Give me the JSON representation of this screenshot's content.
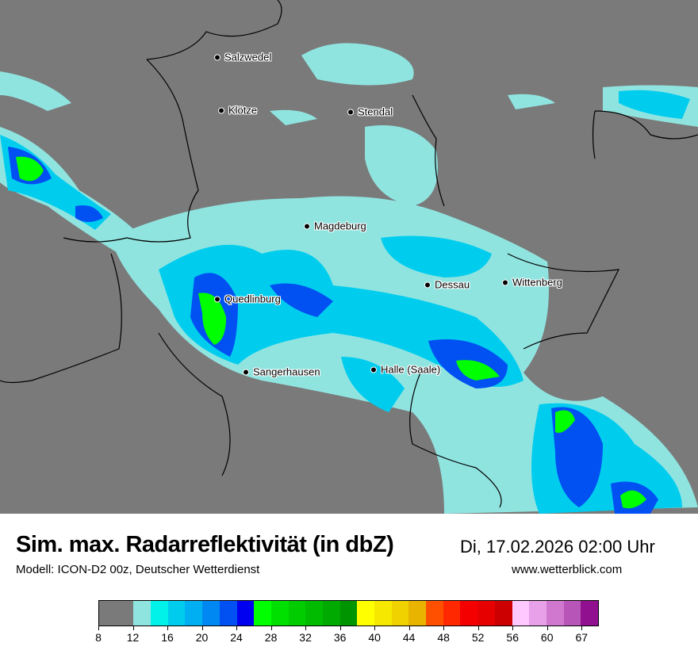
{
  "header": {
    "title": "Sim. max. Radarreflektivität (in dbZ)",
    "datetime": "Di, 17.02.2026 02:00 Uhr",
    "model": "Modell: ICON-D2 00z, Deutscher Wetterdienst",
    "website": "www.wetterblick.com"
  },
  "map": {
    "background_color": "#7a7a7a",
    "cities": [
      {
        "name": "Salzwedel"
      },
      {
        "name": "Klötze"
      },
      {
        "name": "Stendal"
      },
      {
        "name": "Magdeburg"
      },
      {
        "name": "Dessau"
      },
      {
        "name": "Wittenberg"
      },
      {
        "name": "Quedlinburg"
      },
      {
        "name": "Sangerhausen"
      },
      {
        "name": "Halle (Saale)"
      }
    ]
  },
  "legend": {
    "colors": [
      "#7a7a7a",
      "#7a7a7a",
      "#90e4e0",
      "#00f2e8",
      "#00cdee",
      "#00aff2",
      "#0088f2",
      "#0050f2",
      "#0000f0",
      "#00ff00",
      "#00e000",
      "#00cc00",
      "#00bb00",
      "#00aa00",
      "#009400",
      "#ffff00",
      "#f7e800",
      "#f0d200",
      "#e8b400",
      "#ff5000",
      "#ff2800",
      "#f50000",
      "#e60000",
      "#cc0000",
      "#ffc8ff",
      "#e8a0e8",
      "#d078d0",
      "#b855b8",
      "#901090"
    ],
    "tick_labels": [
      "8",
      "12",
      "16",
      "20",
      "24",
      "28",
      "32",
      "36",
      "40",
      "44",
      "48",
      "52",
      "56",
      "60",
      "67"
    ]
  }
}
